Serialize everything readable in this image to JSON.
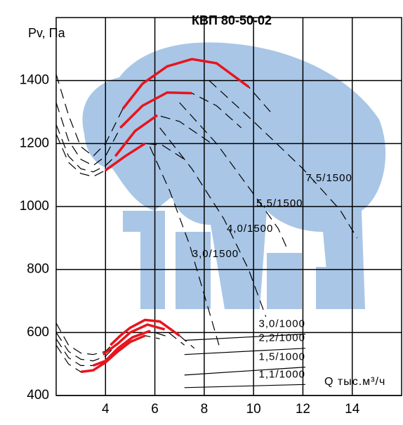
{
  "chart_data": {
    "type": "line",
    "title": "КВП 80-50-02",
    "y_label": "Pv, Па",
    "x_label": "Q тыс.м³/ч",
    "xlim": [
      2,
      16
    ],
    "ylim": [
      400,
      1600
    ],
    "xticks": [
      4,
      6,
      8,
      10,
      12,
      14
    ],
    "yticks": [
      400,
      600,
      800,
      1000,
      1200,
      1400
    ],
    "grid": true,
    "series": [
      {
        "color": "#000000",
        "dash": true,
        "x": [
          2,
          2.5,
          3,
          3.5,
          4,
          4.7,
          5.5,
          6.5,
          7.5,
          8.5,
          9.8,
          10.8
        ],
        "values": [
          1420,
          1290,
          1190,
          1160,
          1200,
          1310,
          1390,
          1445,
          1468,
          1455,
          1380,
          1290
        ]
      },
      {
        "color": "#000000",
        "dash": true,
        "x": [
          2,
          2.5,
          3,
          3.5,
          4,
          4.6,
          5.5,
          6.5,
          7.5,
          8.5,
          9.5
        ],
        "values": [
          1330,
          1210,
          1150,
          1130,
          1160,
          1250,
          1320,
          1362,
          1360,
          1320,
          1250
        ]
      },
      {
        "color": "#000000",
        "dash": true,
        "x": [
          2,
          2.5,
          3,
          3.5,
          4,
          4.4,
          5.2,
          6.1,
          7,
          8.3
        ],
        "values": [
          1260,
          1160,
          1120,
          1110,
          1130,
          1160,
          1240,
          1290,
          1270,
          1200
        ]
      },
      {
        "color": "#000000",
        "dash": true,
        "x": [
          2,
          2.5,
          3,
          3.5,
          4,
          4.8,
          5.6,
          6.3,
          7.2
        ],
        "values": [
          1230,
          1140,
          1105,
          1095,
          1115,
          1160,
          1200,
          1195,
          1150
        ]
      },
      {
        "color": "#e8141c",
        "x": [
          4.7,
          5.5,
          6.5,
          7.5,
          8.5,
          9.8
        ],
        "values": [
          1310,
          1390,
          1445,
          1468,
          1455,
          1380
        ]
      },
      {
        "color": "#e8141c",
        "x": [
          4.6,
          5.5,
          6.5,
          7.5
        ],
        "values": [
          1250,
          1320,
          1362,
          1360
        ]
      },
      {
        "color": "#e8141c",
        "x": [
          4.4,
          5.2,
          6.1
        ],
        "values": [
          1160,
          1240,
          1290
        ]
      },
      {
        "color": "#e8141c",
        "x": [
          4,
          4.8,
          5.6
        ],
        "values": [
          1115,
          1160,
          1200
        ]
      },
      {
        "color": "#000000",
        "dash": true,
        "x": [
          2,
          2.5,
          3,
          3.5,
          4,
          4.5,
          5,
          5.6,
          6.2,
          7,
          7.6
        ],
        "values": [
          630,
          560,
          535,
          530,
          540,
          580,
          615,
          640,
          635,
          590,
          550
        ]
      },
      {
        "color": "#000000",
        "dash": true,
        "x": [
          2,
          2.5,
          3,
          3.5,
          4,
          4.5,
          5,
          5.7,
          6.4,
          7.2
        ],
        "values": [
          600,
          540,
          515,
          510,
          525,
          565,
          600,
          625,
          610,
          560
        ]
      },
      {
        "color": "#000000",
        "dash": true,
        "x": [
          2,
          2.5,
          3,
          3.5,
          4,
          4.5,
          5.1,
          5.8,
          6.6
        ],
        "values": [
          580,
          520,
          495,
          495,
          510,
          550,
          585,
          605,
          585
        ]
      },
      {
        "color": "#000000",
        "dash": true,
        "x": [
          2,
          2.5,
          3,
          3.5,
          4,
          4.5,
          5,
          5.6,
          6.2
        ],
        "values": [
          560,
          500,
          475,
          480,
          505,
          540,
          570,
          590,
          580
        ]
      },
      {
        "color": "#e8141c",
        "x": [
          4.2,
          4.6,
          5,
          5.6,
          6.2,
          7
        ],
        "values": [
          560,
          590,
          615,
          640,
          635,
          590
        ]
      },
      {
        "color": "#e8141c",
        "x": [
          3.9,
          4.5,
          5,
          5.7,
          6.4
        ],
        "values": [
          530,
          565,
          600,
          625,
          610
        ]
      },
      {
        "color": "#e8141c",
        "x": [
          3.5,
          4,
          4.5,
          5.1,
          5.8
        ],
        "values": [
          495,
          510,
          550,
          585,
          605
        ]
      },
      {
        "color": "#e8141c",
        "x": [
          3,
          3.5,
          4,
          4.5,
          5,
          5.6
        ],
        "values": [
          475,
          480,
          505,
          540,
          570,
          590
        ]
      },
      {
        "name": "7,5/1500",
        "color": "#000000",
        "dash": true,
        "x": [
          8.2,
          10,
          12,
          13.5,
          14.2
        ],
        "values": [
          1400,
          1270,
          1120,
          990,
          900
        ]
      },
      {
        "name": "5,5/1500",
        "color": "#000000",
        "dash": true,
        "x": [
          7,
          8.5,
          10,
          11,
          11.4
        ],
        "values": [
          1330,
          1200,
          1040,
          930,
          860
        ]
      },
      {
        "name": "4,0/1500",
        "color": "#000000",
        "dash": true,
        "x": [
          6.2,
          7.5,
          8.8,
          9.8,
          10.5
        ],
        "values": [
          1250,
          1120,
          960,
          800,
          650
        ]
      },
      {
        "name": "3,0/1500",
        "color": "#000000",
        "dash": true,
        "x": [
          5.8,
          6.6,
          7.4,
          8,
          8.6
        ],
        "values": [
          1190,
          1050,
          880,
          720,
          560
        ]
      },
      {
        "name": "3,0/1000",
        "color": "#000000",
        "x": [
          7.2,
          12.1
        ],
        "values": [
          575,
          595
        ]
      },
      {
        "name": "2,2/1000",
        "color": "#000000",
        "x": [
          7.2,
          12.1
        ],
        "values": [
          530,
          550
        ]
      },
      {
        "name": "1,5/1000",
        "color": "#000000",
        "x": [
          7.2,
          12.1
        ],
        "values": [
          465,
          490
        ]
      },
      {
        "name": "1,1/1000",
        "color": "#000000",
        "x": [
          7.2,
          12.1
        ],
        "values": [
          425,
          435
        ]
      }
    ]
  }
}
